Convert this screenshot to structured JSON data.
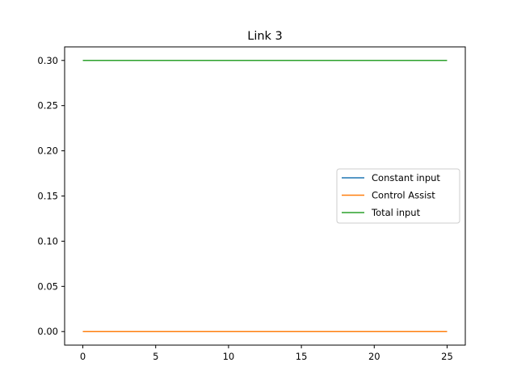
{
  "chart_data": {
    "type": "line",
    "title": "Link 3",
    "xlabel": "",
    "ylabel": "",
    "xlim": [
      -1.25,
      26.25
    ],
    "ylim": [
      -0.015,
      0.315
    ],
    "xticks": [
      0,
      5,
      10,
      15,
      20,
      25
    ],
    "yticks": [
      0.0,
      0.05,
      0.1,
      0.15,
      0.2,
      0.25,
      0.3
    ],
    "xtick_labels": [
      "0",
      "5",
      "10",
      "15",
      "20",
      "25"
    ],
    "ytick_labels": [
      "0.00",
      "0.05",
      "0.10",
      "0.15",
      "0.20",
      "0.25",
      "0.30"
    ],
    "grid": false,
    "legend_position": "center-right",
    "series": [
      {
        "name": "Constant input",
        "color": "#1f77b4",
        "x": [
          0,
          25
        ],
        "y": [
          0.0,
          0.0
        ]
      },
      {
        "name": "Control Assist",
        "color": "#ff7f0e",
        "x": [
          0,
          25
        ],
        "y": [
          0.0,
          0.0
        ]
      },
      {
        "name": "Total input",
        "color": "#2ca02c",
        "x": [
          0,
          25
        ],
        "y": [
          0.3,
          0.3
        ]
      }
    ]
  }
}
